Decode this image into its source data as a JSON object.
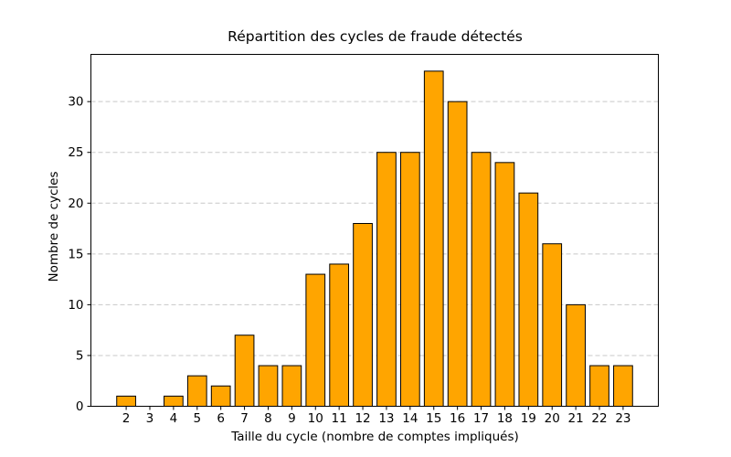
{
  "chart_data": {
    "type": "bar",
    "title": "Répartition des cycles de fraude détectés",
    "xlabel": "Taille du cycle (nombre de comptes impliqués)",
    "ylabel": "Nombre de cycles",
    "categories": [
      2,
      3,
      4,
      5,
      6,
      7,
      8,
      9,
      10,
      11,
      12,
      13,
      14,
      15,
      16,
      17,
      18,
      19,
      20,
      21,
      22,
      23
    ],
    "values": [
      1,
      0,
      1,
      3,
      2,
      7,
      4,
      4,
      13,
      14,
      18,
      25,
      25,
      33,
      30,
      25,
      24,
      21,
      16,
      10,
      4,
      4
    ],
    "yticks": [
      0,
      5,
      10,
      15,
      20,
      25,
      30
    ],
    "ylim": [
      0,
      34.65
    ],
    "xlim": [
      0.51,
      24.49
    ],
    "bar_width": 0.8,
    "bar_color": "#FFA500",
    "bar_edge_color": "#000000",
    "grid": {
      "axis": "y",
      "style": "dashed",
      "color": "#c8c8c8"
    },
    "spine_color": "#000000",
    "legend": "none"
  }
}
